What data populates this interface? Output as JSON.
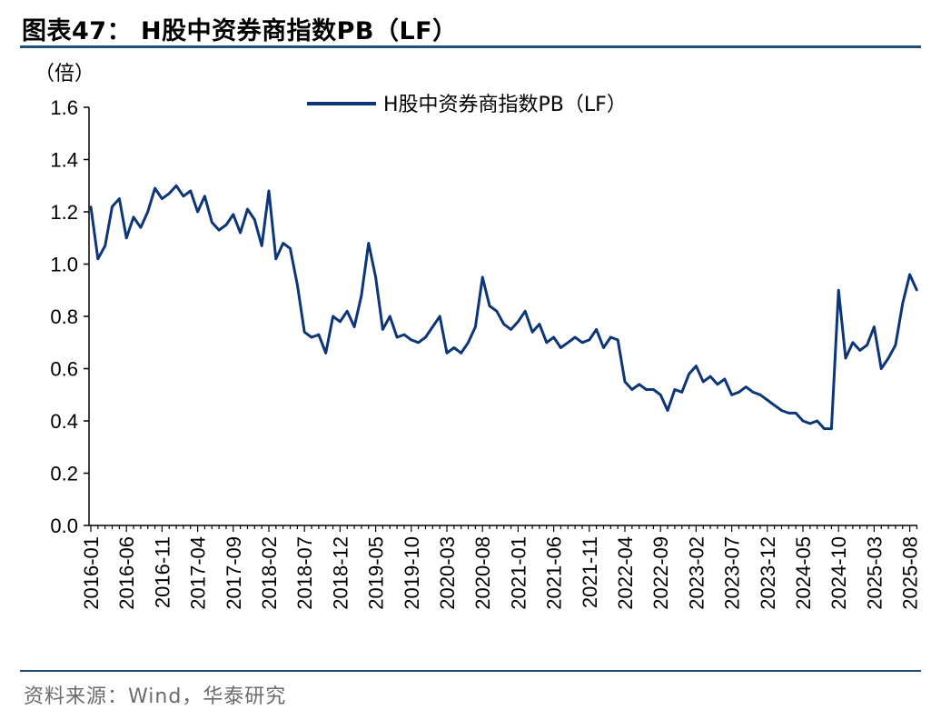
{
  "title": "图表47：  H股中资券商指数PB（LF）",
  "source": "资料来源：Wind，华泰研究",
  "colors": {
    "series": "#0d3678",
    "rule": "#1f4e79",
    "axis": "#000000"
  },
  "chart_data": {
    "type": "line",
    "title": "图表47：  H股中资券商指数PB（LF）",
    "ylabel": "（倍）",
    "xlabel": "",
    "ylim": [
      0,
      1.6
    ],
    "yticks": [
      "0.0",
      "0.2",
      "0.4",
      "0.6",
      "0.8",
      "1.0",
      "1.2",
      "1.4",
      "1.6"
    ],
    "xticks": [
      "2016-01",
      "2016-06",
      "2016-11",
      "2017-04",
      "2017-09",
      "2018-02",
      "2018-07",
      "2018-12",
      "2019-05",
      "2019-10",
      "2020-03",
      "2020-08",
      "2021-01",
      "2021-06",
      "2021-11",
      "2022-04",
      "2022-09",
      "2023-02",
      "2023-07",
      "2023-12",
      "2024-05",
      "2024-10",
      "2025-03",
      "2025-08"
    ],
    "legend": "top-center",
    "grid": false,
    "series": [
      {
        "name": "H股中资券商指数PB（LF）",
        "x": [
          "2016-01",
          "2016-02",
          "2016-03",
          "2016-04",
          "2016-05",
          "2016-06",
          "2016-07",
          "2016-08",
          "2016-09",
          "2016-10",
          "2016-11",
          "2016-12",
          "2017-01",
          "2017-02",
          "2017-03",
          "2017-04",
          "2017-05",
          "2017-06",
          "2017-07",
          "2017-08",
          "2017-09",
          "2017-10",
          "2017-11",
          "2017-12",
          "2018-01",
          "2018-02",
          "2018-03",
          "2018-04",
          "2018-05",
          "2018-06",
          "2018-07",
          "2018-08",
          "2018-09",
          "2018-10",
          "2018-11",
          "2018-12",
          "2019-01",
          "2019-02",
          "2019-03",
          "2019-04",
          "2019-05",
          "2019-06",
          "2019-07",
          "2019-08",
          "2019-09",
          "2019-10",
          "2019-11",
          "2019-12",
          "2020-01",
          "2020-02",
          "2020-03",
          "2020-04",
          "2020-05",
          "2020-06",
          "2020-07",
          "2020-08",
          "2020-09",
          "2020-10",
          "2020-11",
          "2020-12",
          "2021-01",
          "2021-02",
          "2021-03",
          "2021-04",
          "2021-05",
          "2021-06",
          "2021-07",
          "2021-08",
          "2021-09",
          "2021-10",
          "2021-11",
          "2021-12",
          "2022-01",
          "2022-02",
          "2022-03",
          "2022-04",
          "2022-05",
          "2022-06",
          "2022-07",
          "2022-08",
          "2022-09",
          "2022-10",
          "2022-11",
          "2022-12",
          "2023-01",
          "2023-02",
          "2023-03",
          "2023-04",
          "2023-05",
          "2023-06",
          "2023-07",
          "2023-08",
          "2023-09",
          "2023-10",
          "2023-11",
          "2023-12",
          "2024-01",
          "2024-02",
          "2024-03",
          "2024-04",
          "2024-05",
          "2024-06",
          "2024-07",
          "2024-08",
          "2024-09",
          "2024-10",
          "2024-11",
          "2024-12",
          "2025-01",
          "2025-02",
          "2025-03",
          "2025-04",
          "2025-05",
          "2025-06",
          "2025-07",
          "2025-08",
          "2025-09"
        ],
        "values": [
          1.22,
          1.02,
          1.07,
          1.22,
          1.25,
          1.1,
          1.18,
          1.14,
          1.2,
          1.29,
          1.25,
          1.27,
          1.3,
          1.26,
          1.28,
          1.2,
          1.26,
          1.16,
          1.13,
          1.15,
          1.19,
          1.12,
          1.21,
          1.17,
          1.07,
          1.28,
          1.02,
          1.08,
          1.06,
          0.92,
          0.74,
          0.72,
          0.73,
          0.66,
          0.8,
          0.78,
          0.82,
          0.76,
          0.88,
          1.08,
          0.95,
          0.75,
          0.8,
          0.72,
          0.73,
          0.71,
          0.7,
          0.72,
          0.76,
          0.8,
          0.66,
          0.68,
          0.66,
          0.7,
          0.76,
          0.95,
          0.84,
          0.82,
          0.77,
          0.75,
          0.78,
          0.82,
          0.74,
          0.77,
          0.7,
          0.72,
          0.68,
          0.7,
          0.72,
          0.7,
          0.71,
          0.75,
          0.68,
          0.72,
          0.71,
          0.55,
          0.52,
          0.54,
          0.52,
          0.52,
          0.5,
          0.44,
          0.52,
          0.51,
          0.58,
          0.61,
          0.55,
          0.57,
          0.54,
          0.56,
          0.5,
          0.51,
          0.53,
          0.51,
          0.5,
          0.48,
          0.46,
          0.44,
          0.43,
          0.43,
          0.4,
          0.39,
          0.4,
          0.37,
          0.37,
          0.9,
          0.64,
          0.7,
          0.67,
          0.69,
          0.76,
          0.6,
          0.64,
          0.69,
          0.85,
          0.96,
          0.9
        ]
      }
    ]
  }
}
